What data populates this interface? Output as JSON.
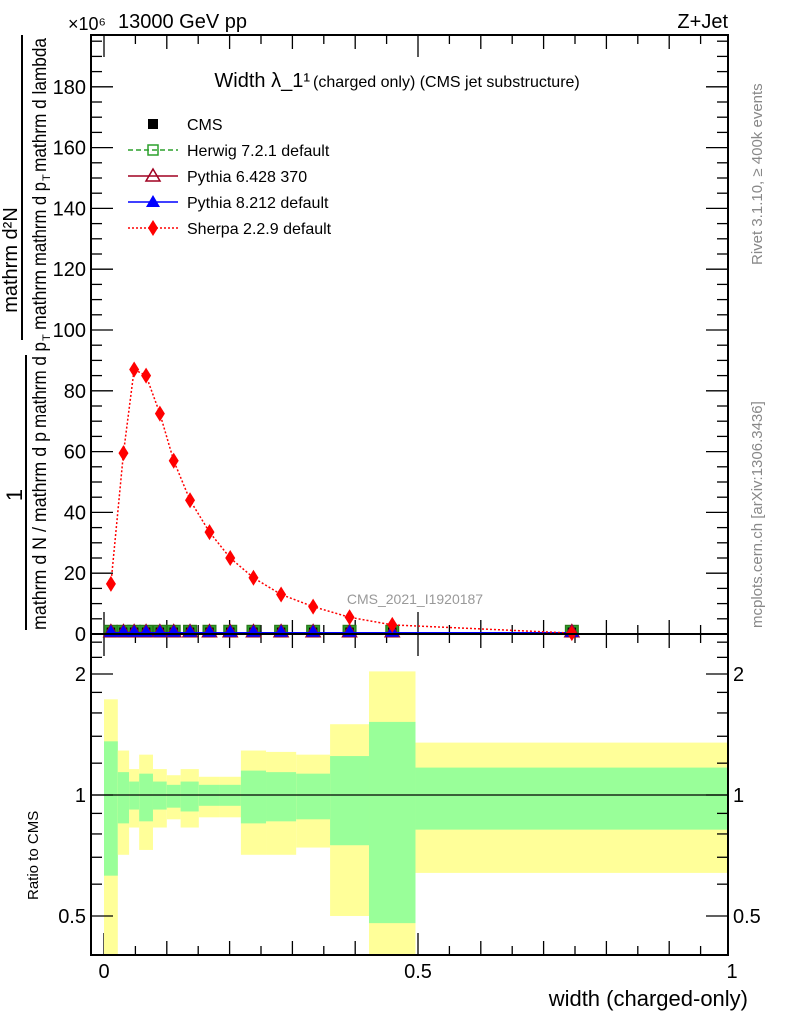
{
  "header": {
    "left": "13000 GeV pp",
    "right": "Z+Jet",
    "exponent": "×10⁶"
  },
  "side_labels": {
    "rivet": "Rivet 3.1.10, ≥ 400k events",
    "mcplots": "mcplots.cern.ch [arXiv:1306.3436]"
  },
  "watermark": "CMS_2021_I1920187",
  "chart_data": [
    {
      "type": "line",
      "title": "Width λ_1¹",
      "title_suffix": "(charged only) (CMS jet substructure)",
      "ylabel_parts": {
        "one": "1",
        "left_den": "mathrm d N / mathrm d p",
        "left_den2": "mathrm d p",
        "right_num": "mathrm d²N",
        "right_den": "mathrm d p",
        "right_den2": "mathrm d lambda",
        "sub": "T",
        "mathrm": "mathrm"
      },
      "xlabel": "width (charged-only)",
      "xlim": [
        -0.02,
        0.995
      ],
      "ylim": [
        0,
        197
      ],
      "yticks": [
        0,
        20,
        40,
        60,
        80,
        100,
        120,
        140,
        160,
        180
      ],
      "xticks": [
        "0",
        "0.5",
        "1"
      ],
      "legend_position": "top-left",
      "bin_edges": [
        0,
        0.022,
        0.04,
        0.056,
        0.078,
        0.1,
        0.122,
        0.151,
        0.184,
        0.218,
        0.258,
        0.306,
        0.36,
        0.422,
        0.496,
        0.994
      ],
      "x": [
        0.011,
        0.031,
        0.048,
        0.067,
        0.089,
        0.111,
        0.137,
        0.168,
        0.201,
        0.238,
        0.282,
        0.333,
        0.391,
        0.459,
        0.745
      ],
      "series": [
        {
          "name": "CMS",
          "color": "#000000",
          "marker": "square",
          "values": [
            0.4,
            0.4,
            0.4,
            0.4,
            0.4,
            0.4,
            0.4,
            0.4,
            0.4,
            0.4,
            0.4,
            0.4,
            0.4,
            0.4,
            0.4
          ]
        },
        {
          "name": "Herwig 7.2.1 default",
          "color": "#2ca02c",
          "marker": "open-square",
          "line": "dashed",
          "values": [
            0.4,
            0.4,
            0.4,
            0.4,
            0.4,
            0.4,
            0.4,
            0.4,
            0.4,
            0.4,
            0.4,
            0.4,
            0.4,
            0.4,
            0.4
          ]
        },
        {
          "name": "Pythia 6.428 370",
          "color": "#a00020",
          "marker": "open-triangle",
          "line": "solid",
          "values": [
            0.4,
            0.4,
            0.4,
            0.4,
            0.4,
            0.4,
            0.4,
            0.4,
            0.4,
            0.4,
            0.4,
            0.4,
            0.4,
            0.4,
            0.4
          ]
        },
        {
          "name": "Pythia 8.212 default",
          "color": "#0000ff",
          "marker": "triangle",
          "line": "solid",
          "values": [
            0.4,
            0.4,
            0.4,
            0.4,
            0.4,
            0.4,
            0.4,
            0.4,
            0.4,
            0.4,
            0.4,
            0.4,
            0.4,
            0.4,
            0.4
          ]
        },
        {
          "name": "Sherpa 2.2.9 default",
          "color": "#ff0000",
          "marker": "diamond",
          "line": "dotted",
          "values": [
            16.5,
            59.5,
            87,
            85,
            72.5,
            57,
            44,
            33.5,
            25,
            18.5,
            13,
            9,
            5.5,
            3,
            0.3
          ]
        }
      ]
    },
    {
      "type": "area",
      "ylabel": "Ratio to CMS",
      "yscale": "log",
      "ylim": [
        0.4,
        2.5
      ],
      "yticks": [
        "0.5",
        "1",
        "2"
      ],
      "bands": {
        "yellow_color": "#ffff99",
        "green_color": "#99ff99",
        "yellow_hi": [
          1.73,
          1.29,
          1.16,
          1.26,
          1.16,
          1.12,
          1.16,
          1.11,
          1.11,
          1.29,
          1.28,
          1.26,
          1.5,
          2.03,
          1.35
        ],
        "green_hi": [
          1.36,
          1.14,
          1.08,
          1.13,
          1.08,
          1.06,
          1.08,
          1.06,
          1.06,
          1.15,
          1.14,
          1.13,
          1.25,
          1.52,
          1.17
        ],
        "green_lo": [
          0.63,
          0.85,
          0.92,
          0.86,
          0.92,
          0.93,
          0.91,
          0.94,
          0.94,
          0.85,
          0.86,
          0.87,
          0.75,
          0.48,
          0.82
        ],
        "yellow_lo": [
          0.3,
          0.71,
          0.83,
          0.73,
          0.83,
          0.87,
          0.83,
          0.88,
          0.88,
          0.71,
          0.71,
          0.74,
          0.5,
          0.3,
          0.64
        ]
      }
    }
  ]
}
